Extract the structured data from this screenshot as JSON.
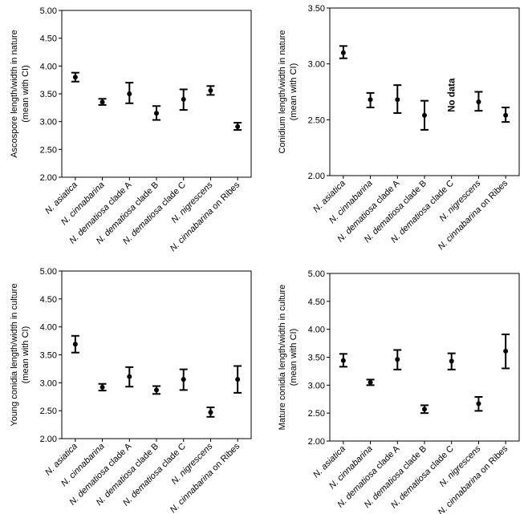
{
  "categories": [
    "N. asiatica",
    "N. cinnabarina",
    "N. dematiosa clade A",
    "N. dematiosa clade B",
    "N. dematiosa clade C",
    "N. nigrescens",
    "N. cinnabarina on Ribes"
  ],
  "category_parts": [
    {
      "italic": "N. asiatica",
      "rest": ""
    },
    {
      "italic": "N. cinnabarina",
      "rest": ""
    },
    {
      "italic": "N. dematiosa",
      "rest": " clade A"
    },
    {
      "italic": "N. dematiosa",
      "rest": " clade B"
    },
    {
      "italic": "N. dematiosa",
      "rest": " clade C"
    },
    {
      "italic": "N. nigrescens",
      "rest": ""
    },
    {
      "italic": "N. cinnabarina",
      "rest": " on Ribes"
    }
  ],
  "chart_data": [
    {
      "type": "scatter",
      "ylabel_line1": "Ascospore length/width in nature",
      "ylabel_line2": "(mean with CI)",
      "ylim": [
        2.0,
        5.0
      ],
      "yticks": [
        "2.00",
        "2.50",
        "3.00",
        "3.50",
        "4.00",
        "4.50",
        "5.00"
      ],
      "means": [
        3.8,
        3.35,
        3.5,
        3.15,
        3.4,
        3.56,
        2.91
      ],
      "ci_low": [
        3.72,
        3.3,
        3.33,
        3.03,
        3.21,
        3.48,
        2.85
      ],
      "ci_high": [
        3.88,
        3.41,
        3.7,
        3.28,
        3.58,
        3.64,
        2.98
      ],
      "annotation": null
    },
    {
      "type": "scatter",
      "ylabel_line1": "Conidium length/width in nature",
      "ylabel_line2": "(mean with CI)",
      "ylim": [
        2.0,
        3.5
      ],
      "yticks": [
        "2.00",
        "2.50",
        "3.00",
        "3.50"
      ],
      "means": [
        3.1,
        2.68,
        2.68,
        2.54,
        null,
        2.66,
        2.54
      ],
      "ci_low": [
        3.05,
        2.61,
        2.56,
        2.41,
        null,
        2.58,
        2.48
      ],
      "ci_high": [
        3.16,
        2.74,
        2.81,
        2.67,
        null,
        2.75,
        2.61
      ],
      "annotation": "No data"
    },
    {
      "type": "scatter",
      "ylabel_line1": "Young conidia length/width in culture",
      "ylabel_line2": "(mean with CI)",
      "ylim": [
        2.0,
        5.0
      ],
      "yticks": [
        "2.00",
        "2.50",
        "3.00",
        "3.50",
        "4.00",
        "4.50",
        "5.00"
      ],
      "means": [
        3.69,
        2.92,
        3.11,
        2.87,
        3.06,
        2.47,
        3.06
      ],
      "ci_low": [
        3.54,
        2.86,
        2.93,
        2.8,
        2.87,
        2.39,
        2.82
      ],
      "ci_high": [
        3.84,
        2.98,
        3.28,
        2.94,
        3.24,
        2.56,
        3.3
      ],
      "annotation": null
    },
    {
      "type": "scatter",
      "ylabel_line1": "Mature conidia length/width in culture",
      "ylabel_line2": "(mean with CI)",
      "ylim": [
        2.0,
        5.0
      ],
      "yticks": [
        "2.00",
        "2.50",
        "3.00",
        "3.50",
        "4.00",
        "4.50",
        "5.00"
      ],
      "means": [
        3.44,
        3.05,
        3.46,
        2.57,
        3.43,
        2.67,
        3.61
      ],
      "ci_low": [
        3.33,
        3.0,
        3.28,
        2.5,
        3.28,
        2.54,
        3.3
      ],
      "ci_high": [
        3.56,
        3.1,
        3.63,
        2.64,
        3.57,
        2.79,
        3.91
      ],
      "annotation": null
    }
  ]
}
